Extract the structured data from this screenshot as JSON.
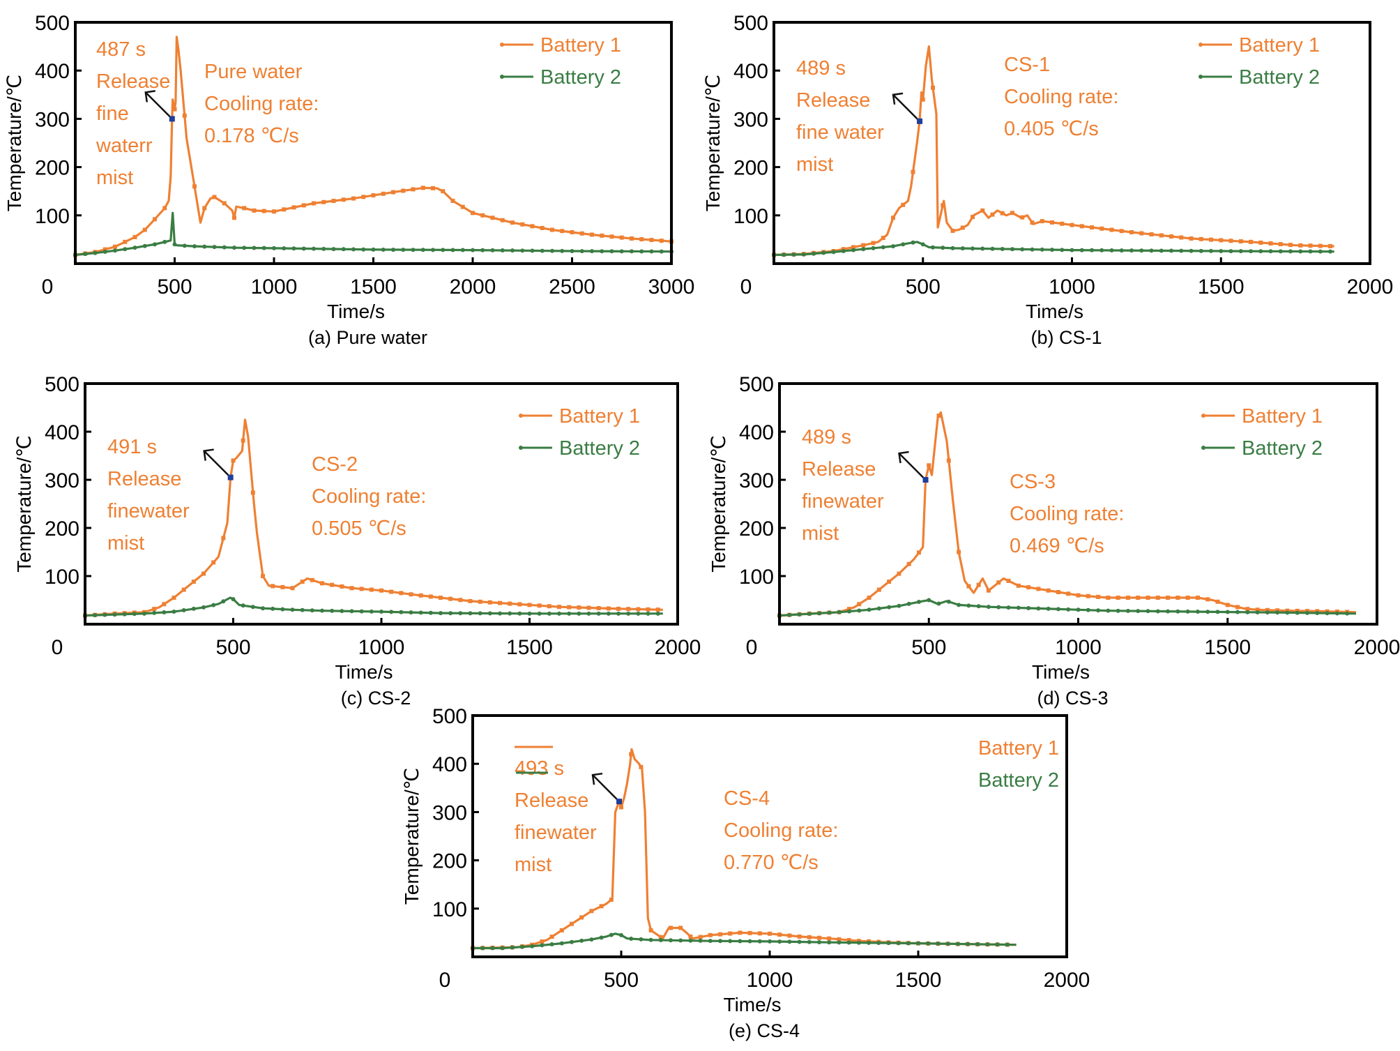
{
  "colors": {
    "battery1": "#EE8033",
    "battery2": "#3A7D44",
    "annotation": "#EE8033",
    "release_marker": "#1F3F9A",
    "axis": "#000000"
  },
  "chart_data": [
    {
      "id": "a",
      "type": "line",
      "caption": "(a) Pure water",
      "xlabel": "Time/s",
      "ylabel": "Temperature/℃",
      "xlim": [
        0,
        3000
      ],
      "ylim": [
        0,
        500
      ],
      "xticks": [
        0,
        500,
        1000,
        1500,
        2000,
        2500,
        3000
      ],
      "yticks": [
        100,
        200,
        300,
        400,
        500
      ],
      "grid": false,
      "legend": {
        "placement": "top-right",
        "entries": [
          "Battery 1",
          "Battery 2"
        ],
        "show_line": true
      },
      "annotation": {
        "lines": [
          "487 s",
          "Release",
          "fine",
          "waterr",
          "mist"
        ],
        "release_time": 487,
        "release_temp": 300
      },
      "label_block": [
        "Pure water",
        "Cooling rate:",
        "0.178 ℃/s"
      ],
      "series": [
        {
          "name": "Battery 1",
          "x": [
            0,
            100,
            200,
            300,
            350,
            400,
            450,
            470,
            480,
            487,
            490,
            500,
            505,
            510,
            520,
            530,
            560,
            600,
            630,
            650,
            680,
            700,
            750,
            790,
            800,
            810,
            850,
            900,
            1000,
            1200,
            1400,
            1600,
            1750,
            1820,
            1850,
            1900,
            2000,
            2200,
            2400,
            2600,
            2800,
            3000
          ],
          "y": [
            18,
            24,
            35,
            55,
            70,
            92,
            115,
            130,
            180,
            300,
            340,
            320,
            335,
            470,
            440,
            400,
            260,
            160,
            85,
            115,
            135,
            138,
            125,
            110,
            95,
            118,
            115,
            110,
            108,
            125,
            135,
            148,
            157,
            156,
            150,
            130,
            105,
            85,
            70,
            60,
            52,
            46
          ]
        },
        {
          "name": "Battery 2",
          "x": [
            0,
            100,
            200,
            300,
            400,
            450,
            480,
            490,
            500,
            510,
            600,
            800,
            1000,
            1500,
            2000,
            2500,
            3000
          ],
          "y": [
            18,
            22,
            27,
            33,
            40,
            45,
            48,
            105,
            40,
            38,
            36,
            33,
            32,
            29,
            28,
            26,
            25
          ]
        }
      ]
    },
    {
      "id": "b",
      "type": "line",
      "caption": "(b) CS-1",
      "xlabel": "Time/s",
      "ylabel": "Temperature/℃",
      "xlim": [
        0,
        2000
      ],
      "ylim": [
        0,
        500
      ],
      "xticks": [
        0,
        500,
        1000,
        1500,
        2000
      ],
      "yticks": [
        100,
        200,
        300,
        400,
        500
      ],
      "grid": false,
      "legend": {
        "placement": "top-right",
        "entries": [
          "Battery 1",
          "Battery 2"
        ],
        "show_line": true
      },
      "annotation": {
        "lines": [
          "489 s",
          "Release",
          "fine water",
          "mist"
        ],
        "release_time": 489,
        "release_temp": 295
      },
      "label_block": [
        "CS-1",
        "Cooling rate:",
        "0.405 ℃/s"
      ],
      "series": [
        {
          "name": "Battery 1",
          "x": [
            0,
            100,
            200,
            300,
            350,
            380,
            400,
            420,
            450,
            460,
            480,
            489,
            495,
            500,
            510,
            520,
            530,
            545,
            550,
            570,
            580,
            600,
            620,
            650,
            670,
            700,
            720,
            750,
            780,
            800,
            830,
            850,
            870,
            900,
            1000,
            1200,
            1400,
            1600,
            1750,
            1880
          ],
          "y": [
            18,
            20,
            26,
            38,
            45,
            60,
            95,
            115,
            130,
            160,
            250,
            295,
            355,
            340,
            410,
            450,
            380,
            310,
            75,
            130,
            85,
            68,
            70,
            80,
            100,
            110,
            95,
            110,
            100,
            105,
            95,
            100,
            82,
            88,
            80,
            65,
            52,
            45,
            38,
            36
          ]
        },
        {
          "name": "Battery 2",
          "x": [
            0,
            100,
            200,
            300,
            400,
            450,
            480,
            500,
            520,
            600,
            800,
            1000,
            1500,
            1880
          ],
          "y": [
            18,
            19,
            24,
            30,
            36,
            42,
            45,
            40,
            34,
            32,
            30,
            28,
            26,
            25
          ]
        }
      ]
    },
    {
      "id": "c",
      "type": "line",
      "caption": "(c) CS-2",
      "xlabel": "Time/s",
      "ylabel": "Temperature/℃",
      "xlim": [
        0,
        2000
      ],
      "ylim": [
        0,
        500
      ],
      "xticks": [
        0,
        500,
        1000,
        1500,
        2000
      ],
      "yticks": [
        100,
        200,
        300,
        400,
        500
      ],
      "grid": false,
      "legend": {
        "placement": "top-right",
        "entries": [
          "Battery 1",
          "Battery 2"
        ],
        "show_line": true
      },
      "annotation": {
        "lines": [
          "491 s",
          "Release",
          "finewater",
          "mist"
        ],
        "release_time": 491,
        "release_temp": 305
      },
      "label_block": [
        "CS-2",
        "Cooling rate:",
        "0.505 ℃/s"
      ],
      "series": [
        {
          "name": "Battery 1",
          "x": [
            0,
            100,
            200,
            250,
            300,
            350,
            400,
            450,
            480,
            491,
            500,
            510,
            530,
            540,
            550,
            570,
            580,
            600,
            620,
            650,
            700,
            750,
            800,
            900,
            1000,
            1100,
            1200,
            1300,
            1400,
            1500,
            1600,
            1700,
            1800,
            1950
          ],
          "y": [
            18,
            22,
            25,
            35,
            55,
            80,
            105,
            140,
            210,
            305,
            340,
            345,
            360,
            425,
            390,
            250,
            190,
            100,
            80,
            78,
            75,
            95,
            85,
            75,
            70,
            62,
            55,
            48,
            44,
            40,
            36,
            34,
            32,
            30
          ]
        },
        {
          "name": "Battery 2",
          "x": [
            0,
            200,
            300,
            400,
            450,
            490,
            500,
            520,
            600,
            700,
            800,
            1000,
            1200,
            1500,
            1950
          ],
          "y": [
            18,
            22,
            26,
            35,
            42,
            55,
            52,
            40,
            33,
            30,
            28,
            26,
            23,
            22,
            22
          ]
        }
      ]
    },
    {
      "id": "d",
      "type": "line",
      "caption": "(d) CS-3",
      "xlabel": "Time/s",
      "ylabel": "Temperature/℃",
      "xlim": [
        0,
        2000
      ],
      "ylim": [
        0,
        500
      ],
      "xticks": [
        0,
        500,
        1000,
        1500,
        2000
      ],
      "yticks": [
        100,
        200,
        300,
        400,
        500
      ],
      "grid": false,
      "legend": {
        "placement": "top-right",
        "entries": [
          "Battery 1",
          "Battery 2"
        ],
        "show_line": true
      },
      "annotation": {
        "lines": [
          "489 s",
          "Release",
          "finewater",
          "mist"
        ],
        "release_time": 489,
        "release_temp": 300
      },
      "label_block": [
        "CS-3",
        "Cooling rate:",
        "0.469 ℃/s"
      ],
      "series": [
        {
          "name": "Battery 1",
          "x": [
            0,
            100,
            200,
            250,
            300,
            350,
            400,
            450,
            480,
            489,
            500,
            510,
            530,
            540,
            560,
            580,
            600,
            620,
            650,
            680,
            700,
            750,
            800,
            900,
            1000,
            1100,
            1200,
            1300,
            1400,
            1450,
            1500,
            1560,
            1600,
            1700,
            1800,
            1930
          ],
          "y": [
            18,
            22,
            25,
            35,
            55,
            80,
            105,
            135,
            160,
            300,
            330,
            310,
            430,
            440,
            380,
            260,
            150,
            90,
            65,
            95,
            70,
            95,
            80,
            70,
            60,
            55,
            55,
            55,
            55,
            50,
            40,
            32,
            30,
            28,
            27,
            25
          ]
        },
        {
          "name": "Battery 2",
          "x": [
            0,
            200,
            300,
            400,
            480,
            500,
            530,
            560,
            600,
            700,
            900,
            1100,
            1400,
            1700,
            1930
          ],
          "y": [
            18,
            25,
            30,
            38,
            48,
            50,
            42,
            48,
            40,
            36,
            32,
            28,
            26,
            24,
            22
          ]
        }
      ]
    },
    {
      "id": "e",
      "type": "line",
      "caption": "(e) CS-4",
      "xlabel": "Time/s",
      "ylabel": "Temperature/℃",
      "xlim": [
        0,
        2000
      ],
      "ylim": [
        0,
        500
      ],
      "xticks": [
        0,
        500,
        1000,
        1500,
        2000
      ],
      "yticks": [
        100,
        200,
        300,
        400,
        500
      ],
      "grid": false,
      "legend": {
        "placement": "top-right",
        "entries": [
          "Battery 1",
          "Battery 2"
        ],
        "show_line": false
      },
      "annotation": {
        "lines": [
          "493 s",
          "Release",
          "finewater",
          "mist"
        ],
        "release_time": 493,
        "release_temp": 322
      },
      "label_block": [
        "CS-4",
        "Cooling rate:",
        "0.770 ℃/s"
      ],
      "series": [
        {
          "name": "Battery 1",
          "x": [
            0,
            150,
            200,
            250,
            300,
            350,
            400,
            450,
            470,
            480,
            493,
            500,
            510,
            520,
            530,
            535,
            545,
            560,
            570,
            580,
            590,
            600,
            640,
            660,
            700,
            720,
            740,
            800,
            900,
            1000,
            1100,
            1200,
            1300,
            1400,
            1500,
            1600,
            1700,
            1830
          ],
          "y": [
            18,
            20,
            25,
            35,
            55,
            75,
            95,
            110,
            120,
            300,
            322,
            310,
            330,
            360,
            400,
            430,
            410,
            400,
            390,
            300,
            80,
            55,
            38,
            60,
            60,
            50,
            38,
            45,
            50,
            48,
            42,
            38,
            33,
            30,
            28,
            27,
            26,
            25
          ]
        },
        {
          "name": "Battery 2",
          "x": [
            0,
            100,
            200,
            300,
            400,
            450,
            480,
            500,
            520,
            600,
            800,
            1000,
            1200,
            1500,
            1830
          ],
          "y": [
            18,
            18,
            22,
            28,
            36,
            42,
            48,
            45,
            38,
            35,
            33,
            32,
            30,
            28,
            25
          ]
        }
      ]
    }
  ]
}
